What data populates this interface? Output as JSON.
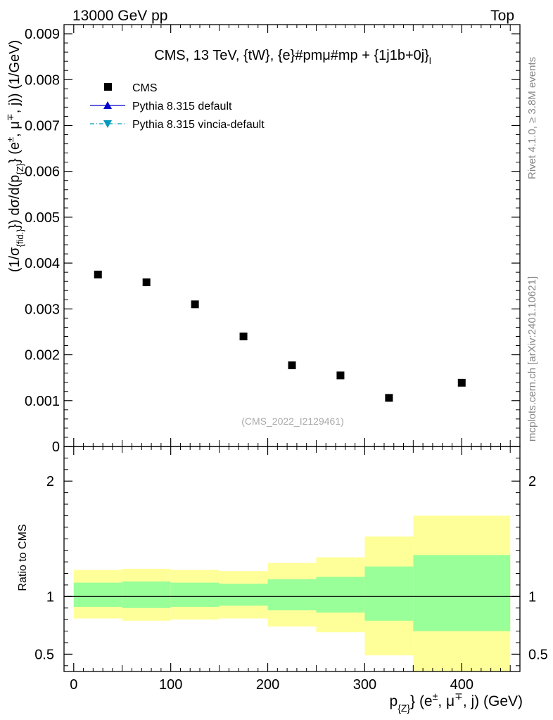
{
  "header": {
    "left": "13000 GeV pp",
    "right": "Top"
  },
  "side_labels": {
    "rivet": "Rivet 4.1.0, ≥ 3.8M events",
    "mcplots": "mcplots.cern.ch [arXiv:2401.10621]"
  },
  "watermark": "(CMS_2022_I2129461)",
  "chart_data": [
    {
      "panel": "main",
      "type": "scatter",
      "title": "CMS, 13 TeV, {tW}, {e}#pmμ#mp + {1j1b+0j}",
      "title_suffix": "l",
      "ylabel": "(1/σ_{fid.}) dσ/d(p_{Z}) (e±, μ∓, j) (1/GeV)",
      "xlim": [
        -10,
        460
      ],
      "ylim": [
        0,
        0.0092
      ],
      "y_ticks": [
        0,
        0.001,
        0.002,
        0.003,
        0.004,
        0.005,
        0.006,
        0.007,
        0.008,
        0.009
      ],
      "y_tick_labels": [
        "0",
        "0.001",
        "0.002",
        "0.003",
        "0.004",
        "0.005",
        "0.006",
        "0.007",
        "0.008",
        "0.009"
      ],
      "legend": [
        {
          "label": "CMS",
          "marker": "square",
          "color": "#000000"
        },
        {
          "label": "Pythia 8.315 default",
          "marker": "triangle-up",
          "color": "#0000cc",
          "line": "solid"
        },
        {
          "label": "Pythia 8.315 vincia-default",
          "marker": "triangle-down",
          "color": "#0099bb",
          "line": "dashdot"
        }
      ],
      "series": [
        {
          "name": "CMS",
          "x": [
            25,
            75,
            125,
            175,
            225,
            275,
            325,
            400
          ],
          "y": [
            0.00375,
            0.00358,
            0.0031,
            0.0024,
            0.00177,
            0.00155,
            0.00106,
            0.00139
          ]
        }
      ]
    },
    {
      "panel": "ratio",
      "type": "area",
      "ylabel": "Ratio to CMS",
      "xlabel": "p_{Z} (e±, μ∓, j) (GeV)",
      "xlim": [
        -10,
        460
      ],
      "ylim": [
        0.35,
        2.3
      ],
      "x_ticks": [
        0,
        100,
        200,
        300,
        400
      ],
      "x_tick_labels": [
        "0",
        "100",
        "200",
        "300",
        "400"
      ],
      "y_ticks": [
        0.5,
        1,
        2
      ],
      "y_tick_labels": [
        "0.5",
        "1",
        "2"
      ],
      "bins": [
        {
          "lo": 0,
          "hi": 50,
          "stat_lo": 0.91,
          "stat_hi": 1.12,
          "tot_lo": 0.81,
          "tot_hi": 1.23
        },
        {
          "lo": 50,
          "hi": 100,
          "stat_lo": 0.9,
          "stat_hi": 1.13,
          "tot_lo": 0.79,
          "tot_hi": 1.24
        },
        {
          "lo": 100,
          "hi": 150,
          "stat_lo": 0.91,
          "stat_hi": 1.12,
          "tot_lo": 0.8,
          "tot_hi": 1.23
        },
        {
          "lo": 150,
          "hi": 200,
          "stat_lo": 0.92,
          "stat_hi": 1.11,
          "tot_lo": 0.81,
          "tot_hi": 1.22
        },
        {
          "lo": 200,
          "hi": 250,
          "stat_lo": 0.88,
          "stat_hi": 1.15,
          "tot_lo": 0.74,
          "tot_hi": 1.29
        },
        {
          "lo": 250,
          "hi": 300,
          "stat_lo": 0.86,
          "stat_hi": 1.17,
          "tot_lo": 0.69,
          "tot_hi": 1.34
        },
        {
          "lo": 300,
          "hi": 350,
          "stat_lo": 0.79,
          "stat_hi": 1.26,
          "tot_lo": 0.49,
          "tot_hi": 1.52
        },
        {
          "lo": 350,
          "hi": 450,
          "stat_lo": 0.7,
          "stat_hi": 1.36,
          "tot_lo": 0.35,
          "tot_hi": 1.7
        }
      ],
      "reference_line": 1,
      "colors": {
        "stat": "#99ff99",
        "total": "#ffff99"
      }
    }
  ]
}
